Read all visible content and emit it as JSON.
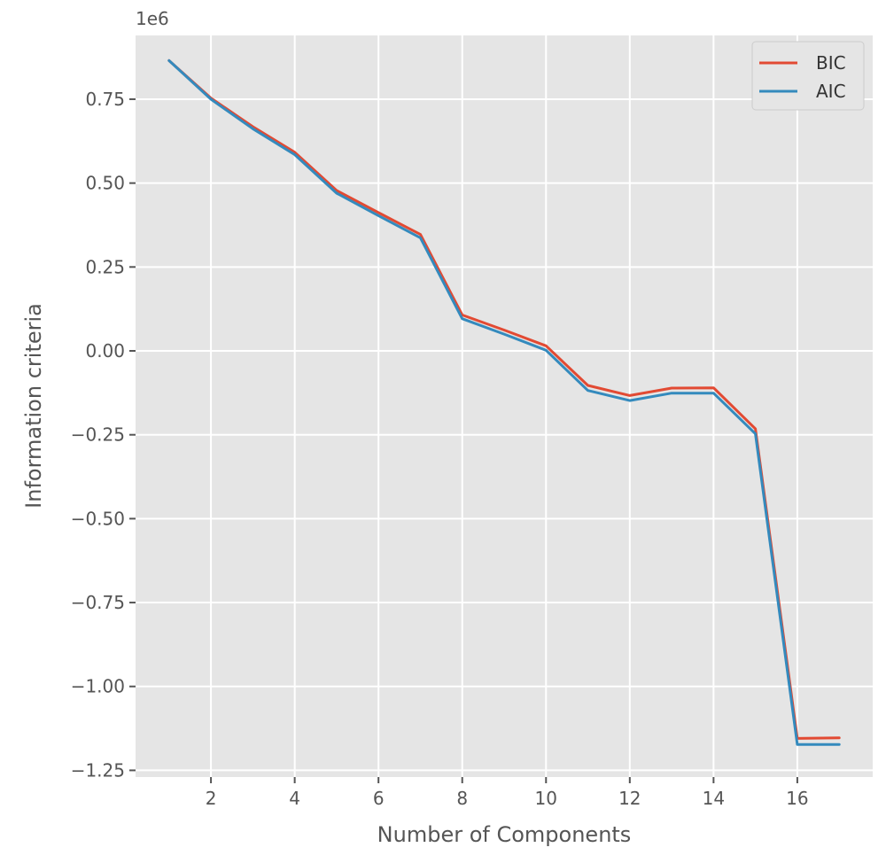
{
  "chart_data": {
    "type": "line",
    "xlabel": "Number of Components",
    "ylabel": "Information criteria",
    "y_offset_label": "1e6",
    "x": [
      1,
      2,
      3,
      4,
      5,
      6,
      7,
      8,
      9,
      10,
      11,
      12,
      13,
      14,
      15,
      16,
      17
    ],
    "xlim": [
      0.2,
      17.8
    ],
    "ylim": [
      -1.27,
      0.94
    ],
    "x_ticks": [
      2,
      4,
      6,
      8,
      10,
      12,
      14,
      16
    ],
    "x_tick_labels": [
      "2",
      "4",
      "6",
      "8",
      "10",
      "12",
      "14",
      "16"
    ],
    "y_ticks": [
      0.75,
      0.5,
      0.25,
      0.0,
      -0.25,
      -0.5,
      -0.75,
      -1.0,
      -1.25
    ],
    "y_tick_labels": [
      "0.75",
      "0.50",
      "0.25",
      "0.00",
      "−0.25",
      "−0.50",
      "−0.75",
      "−1.00",
      "−1.25"
    ],
    "grid": true,
    "legend_position": "top-right",
    "series": [
      {
        "name": "BIC",
        "color": "#E24A33",
        "values": [
          0.865,
          0.753,
          0.668,
          0.592,
          0.478,
          0.412,
          0.347,
          0.107,
          0.062,
          0.015,
          -0.103,
          -0.133,
          -0.111,
          -0.11,
          -0.232,
          -1.155,
          -1.153
        ]
      },
      {
        "name": "AIC",
        "color": "#348ABD",
        "values": [
          0.865,
          0.75,
          0.662,
          0.585,
          0.47,
          0.403,
          0.337,
          0.096,
          0.05,
          0.002,
          -0.118,
          -0.148,
          -0.126,
          -0.126,
          -0.247,
          -1.173,
          -1.173
        ]
      }
    ],
    "plot_background": "#E5E5E5",
    "grid_color": "#FFFFFF"
  }
}
